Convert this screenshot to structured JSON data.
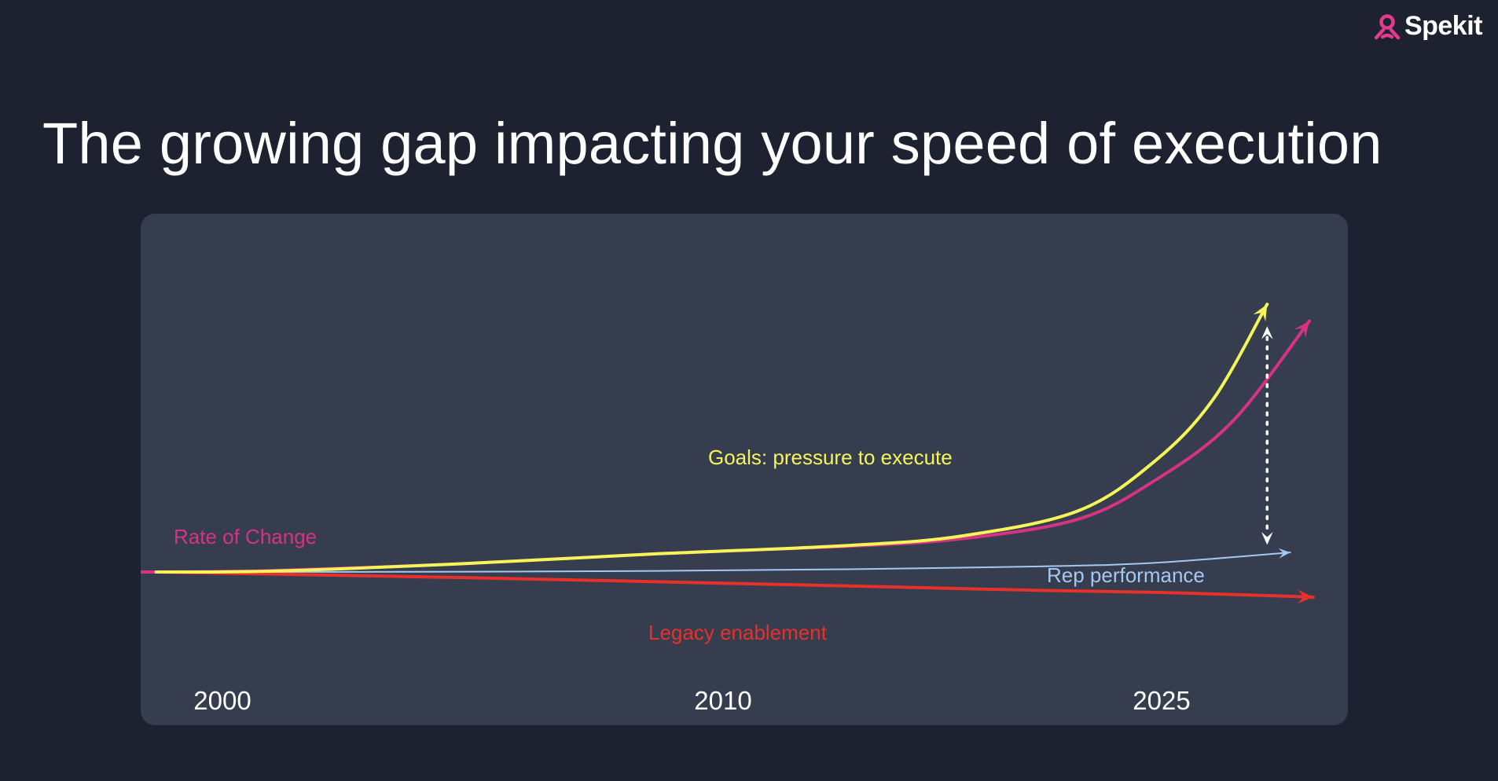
{
  "brand": {
    "name": "Spekit"
  },
  "title": "The growing gap impacting your speed of execution",
  "chart_data": {
    "type": "line",
    "title": "The growing gap impacting your speed of execution",
    "xlabel": "",
    "ylabel": "",
    "x_ticks": [
      {
        "label": "2000",
        "value": 2000
      },
      {
        "label": "2010",
        "value": 2010
      },
      {
        "label": "2025",
        "value": 2025
      }
    ],
    "xlim": [
      1996.6,
      2028
    ],
    "ylim": [
      -10,
      100
    ],
    "grid": false,
    "series": [
      {
        "name": "Goals: pressure to execute",
        "color": "#f5f55a",
        "points": [
          [
            1997,
            0
          ],
          [
            2000,
            0.3
          ],
          [
            2005,
            3
          ],
          [
            2010,
            6.5
          ],
          [
            2015,
            9.5
          ],
          [
            2018,
            13
          ],
          [
            2021,
            22
          ],
          [
            2023,
            40
          ],
          [
            2024.5,
            62
          ],
          [
            2025.9,
            96
          ]
        ]
      },
      {
        "name": "Rate of Change",
        "color": "#d63384",
        "points": [
          [
            1996.6,
            0
          ],
          [
            2000,
            0.5
          ],
          [
            2005,
            3
          ],
          [
            2010,
            6.5
          ],
          [
            2015,
            9.2
          ],
          [
            2018,
            12
          ],
          [
            2021,
            19
          ],
          [
            2023,
            33
          ],
          [
            2025,
            54
          ],
          [
            2027,
            90
          ]
        ]
      },
      {
        "name": "Rep performance",
        "color": "#a5c8f0",
        "points": [
          [
            1997,
            0
          ],
          [
            2005,
            0.1
          ],
          [
            2010,
            0.4
          ],
          [
            2015,
            1
          ],
          [
            2020,
            2
          ],
          [
            2023,
            3.3
          ],
          [
            2026.5,
            7
          ]
        ]
      },
      {
        "name": "Legacy enablement",
        "color": "#e8312a",
        "points": [
          [
            1997,
            0
          ],
          [
            2005,
            -2
          ],
          [
            2010,
            -3.5
          ],
          [
            2015,
            -5
          ],
          [
            2020,
            -6.6
          ],
          [
            2023,
            -7.3
          ],
          [
            2026,
            -8.5
          ],
          [
            2027.1,
            -9
          ]
        ]
      }
    ],
    "annotations": [
      {
        "type": "gap-arrow",
        "x": 2025.9,
        "from_series": "Goals: pressure to execute",
        "to_series": "Rep performance",
        "style": "dotted",
        "color": "#ffffff"
      }
    ]
  }
}
